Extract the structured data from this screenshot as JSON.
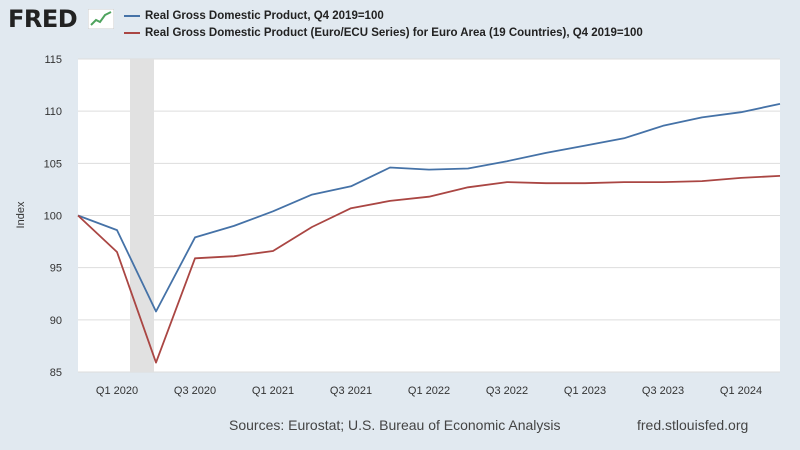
{
  "header": {
    "logo_text": "FRED",
    "logo_icon": "chart-line-icon"
  },
  "footer": {
    "sources": "Sources: Eurostat; U.S. Bureau of Economic Analysis",
    "site": "fred.stlouisfed.org"
  },
  "colors": {
    "background": "#e1e9f0",
    "plot_area": "#ffffff",
    "gridline": "#dddddd",
    "recession_shading": "#e1e1e1",
    "logo_green": "#4ea35e"
  },
  "chart_data": {
    "type": "line",
    "xlabel": "",
    "ylabel": "Index",
    "ylim": [
      85,
      115
    ],
    "yticks": [
      85,
      90,
      95,
      100,
      105,
      110,
      115
    ],
    "grid": true,
    "legend_position": "top-left",
    "x": [
      "Q4 2019",
      "Q1 2020",
      "Q2 2020",
      "Q3 2020",
      "Q4 2020",
      "Q1 2021",
      "Q2 2021",
      "Q3 2021",
      "Q4 2021",
      "Q1 2022",
      "Q2 2022",
      "Q3 2022",
      "Q4 2022",
      "Q1 2023",
      "Q2 2023",
      "Q3 2023",
      "Q4 2023",
      "Q1 2024",
      "Q2 2024"
    ],
    "xtick_labels": [
      "Q1 2020",
      "Q3 2020",
      "Q1 2021",
      "Q3 2021",
      "Q1 2022",
      "Q3 2022",
      "Q1 2023",
      "Q3 2023",
      "Q1 2024"
    ],
    "recession_shading": {
      "start": "Q1 2020",
      "end": "Q2 2020"
    },
    "series": [
      {
        "name": "Real Gross Domestic Product, Q4 2019=100",
        "color": "#4572a7",
        "values": [
          100.0,
          98.6,
          90.8,
          97.9,
          99.0,
          100.4,
          102.0,
          102.8,
          104.6,
          104.4,
          104.5,
          105.2,
          106.0,
          106.7,
          107.4,
          108.6,
          109.4,
          109.9,
          110.7
        ]
      },
      {
        "name": "Real Gross Domestic Product (Euro/ECU Series) for Euro Area (19 Countries), Q4 2019=100",
        "color": "#aa4643",
        "values": [
          100.0,
          96.5,
          85.9,
          95.9,
          96.1,
          96.6,
          98.9,
          100.7,
          101.4,
          101.8,
          102.7,
          103.2,
          103.1,
          103.1,
          103.2,
          103.2,
          103.3,
          103.6,
          103.8
        ]
      }
    ]
  }
}
